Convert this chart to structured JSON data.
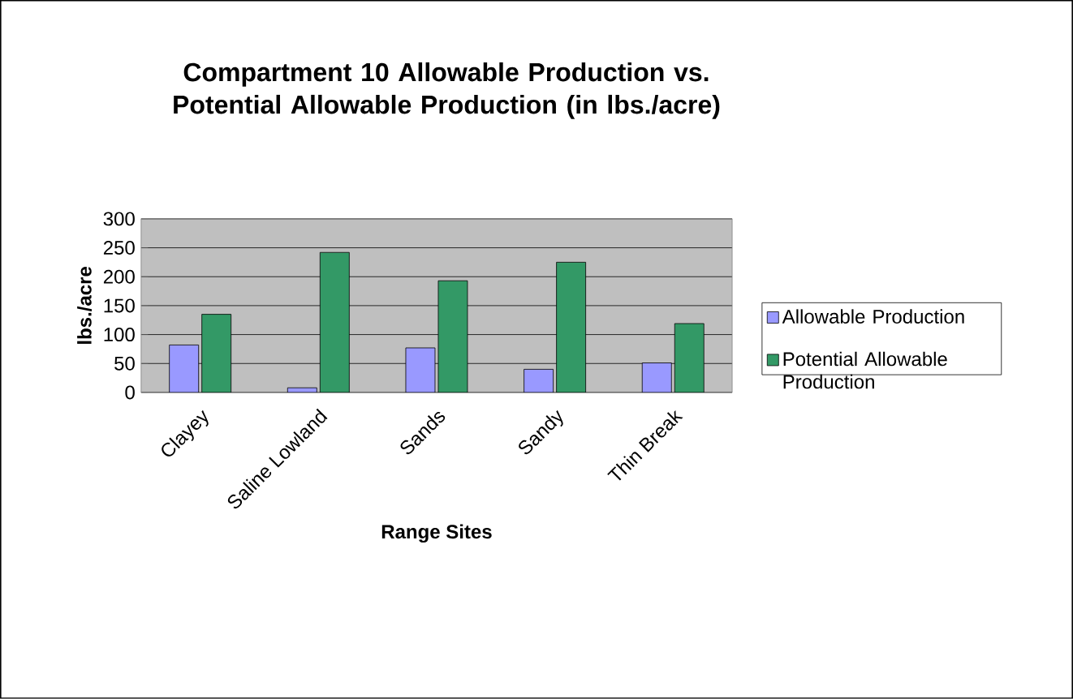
{
  "chart_data": {
    "type": "bar",
    "title": "Compartment 10 Allowable Production vs. Potential Allowable Production (in lbs./acre)",
    "xlabel": "Range Sites",
    "ylabel": "lbs./acre",
    "categories": [
      "Clayey",
      "Saline Lowland",
      "Sands",
      "Sandy",
      "Thin Break"
    ],
    "series": [
      {
        "name": "Allowable Production",
        "color": "#9999ff",
        "values": [
          82,
          8,
          77,
          40,
          51
        ]
      },
      {
        "name": "Potential Allowable Production",
        "color": "#339966",
        "values": [
          135,
          242,
          193,
          225,
          119
        ]
      }
    ],
    "ylim": [
      0,
      300
    ],
    "yticks": [
      0,
      50,
      100,
      150,
      200,
      250,
      300
    ],
    "grid": "y",
    "legend": "right"
  }
}
